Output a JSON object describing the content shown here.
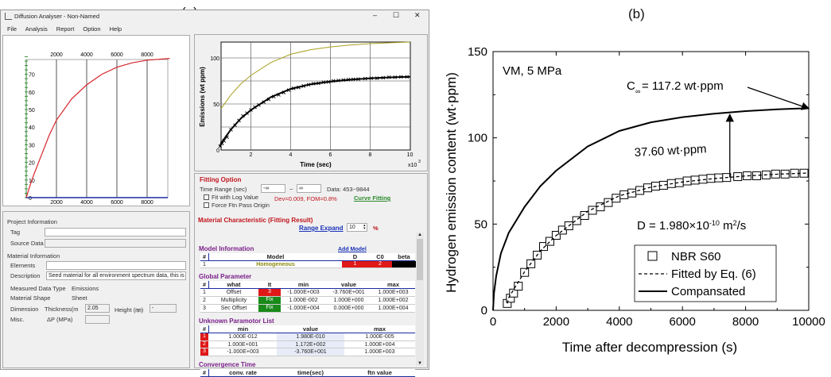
{
  "panel_labels": {
    "a": "(a)",
    "b": "(b)"
  },
  "app": {
    "title": "Diffusion Analyser -  Non-Named",
    "window_controls": {
      "minimize": "–",
      "maximize": "☐",
      "close": "✕"
    },
    "menu": [
      "File",
      "Analysis",
      "Report",
      "Option",
      "Help"
    ],
    "preview_chart": {
      "x_ticks": [
        "2000",
        "4000",
        "6000",
        "8000"
      ],
      "y_ticks": [
        "0",
        "10",
        "20",
        "30",
        "40",
        "50",
        "60",
        "70"
      ],
      "curve": [
        [
          0,
          0
        ],
        [
          250,
          7
        ],
        [
          500,
          13
        ],
        [
          1000,
          24
        ],
        [
          1500,
          35
        ],
        [
          2000,
          44
        ],
        [
          3000,
          56
        ],
        [
          4000,
          64
        ],
        [
          5000,
          70
        ],
        [
          6000,
          74
        ],
        [
          7000,
          76.5
        ],
        [
          8000,
          78
        ],
        [
          9500,
          79
        ]
      ],
      "curve_color": "#d8262c"
    },
    "emission_chart": {
      "ylabel": "Emissions (wt ppm)",
      "xlabel": "Time (sec)",
      "x_multiplier": "x10",
      "x_multiplier_exp": "3",
      "x_ticks": [
        "2",
        "4",
        "6",
        "8",
        "10"
      ],
      "y_ticks": [
        "0",
        "50",
        "100"
      ],
      "compensated_color": "#a8a020"
    },
    "project": {
      "section": "Project Information",
      "tag_label": "Tag",
      "tag_value": "",
      "source_label": "Source Data",
      "source_value": ""
    },
    "material": {
      "section": "Material Information",
      "elements_label": "Elements",
      "elements_value": "",
      "description_label": "Description",
      "description_value": "Seed material for all environment spectrum data, this is",
      "measured_label": "Measured Data Type",
      "measured_value": "Emissions",
      "shape_label": "Material Shape",
      "shape_value": "Sheet",
      "dimension_label": "Dimension",
      "thickness_label": "Thickness(m",
      "thickness_value": "2.05",
      "height_label": "Height (㎜)",
      "height_value": "-",
      "misc_label": "Misc.",
      "dp_label": "ΔP (MPa)",
      "dp_value": ""
    },
    "fitting": {
      "section": "Fitting Option",
      "time_range_label": "Time Range (sec)",
      "from": "-∞",
      "tilde": "~",
      "to": "∞",
      "data_range": "Data: 453~9844",
      "log_label": "Fit with Log Value",
      "log_checked": false,
      "stats": "Dev=0.009,  FOM=0.8%",
      "curve_fitting": "Curve Fitting",
      "origin_label": "Force Ftn Pass Origin",
      "origin_checked": false
    },
    "result": {
      "section": "Material Characteristic (Fitting Result)",
      "range_expand": "Range Expand",
      "range_value": "10",
      "percent": "%",
      "model_info": {
        "title": "Model Information",
        "add_model": "Add Model",
        "headers": [
          "#",
          "Model",
          "D",
          "C0",
          "beta"
        ],
        "rows": [
          [
            "1",
            "Homogeneous",
            "1",
            "2",
            ""
          ]
        ]
      },
      "global": {
        "title": "Global Parameter",
        "headers": [
          "#",
          "what",
          "It",
          "min",
          "value",
          "max"
        ],
        "rows": [
          [
            "1",
            "Offset",
            "3",
            "-1.000E+003",
            "-3.760E+001",
            "1.000E+003"
          ],
          [
            "2",
            "Multiplicity",
            "Fix",
            "1.000E-002",
            "1.000E+000",
            "1.000E+002"
          ],
          [
            "3",
            "Sec Offset",
            "Fix",
            "-1.000E+004",
            "0.000E+000",
            "1.000E+004"
          ]
        ]
      },
      "unknown": {
        "title": "Unknown Paramotor List",
        "headers": [
          "#",
          "min",
          "value",
          "max"
        ],
        "rows": [
          [
            "1",
            "1.000E-012",
            "1.980E-010",
            "1.000E-005"
          ],
          [
            "2",
            "1.000E+001",
            "1.172E+002",
            "1.000E+004"
          ],
          [
            "3",
            "-1.000E+003",
            "-3.760E+001",
            "1.000E+003"
          ]
        ]
      },
      "convergence": {
        "title": "Convergence Time",
        "headers": [
          "#",
          "conv. rate",
          "time(sec)",
          "ftn value"
        ]
      }
    }
  },
  "chart_data": {
    "type": "scatter",
    "xlabel": "Time after decompression (s)",
    "ylabel": "Hydrogen emission content (wt·ppm)",
    "xlim": [
      0,
      10000
    ],
    "ylim": [
      0,
      150
    ],
    "x_ticks": [
      "0",
      "2000",
      "4000",
      "6000",
      "8000",
      "10000"
    ],
    "y_ticks": [
      "0",
      "50",
      "100",
      "150"
    ],
    "grid": false,
    "legend_position": "bottom-right",
    "annotations": {
      "condition": "VM, 5 MPa",
      "c_inf_prefix": "C",
      "c_inf_sub": "∞",
      "c_inf_text": "= 117.2 wt·ppm",
      "gap": "37.60 wt·ppm",
      "d_prefix": "D = 1.980×10",
      "d_exp": "-10",
      "d_unit": " m",
      "d_unit_exp": "2",
      "d_suffix": "/s"
    },
    "offset": 37.6,
    "series": [
      {
        "name": "NBR S60",
        "style": "open-square",
        "x": [
          450,
          550,
          650,
          800,
          1000,
          1200,
          1400,
          1600,
          1800,
          2000,
          2200,
          2400,
          2650,
          2900,
          3150,
          3400,
          3650,
          3900,
          4150,
          4400,
          4650,
          4900,
          5150,
          5400,
          5650,
          5900,
          6150,
          6400,
          6650,
          6900,
          7150,
          7400,
          7750,
          8050,
          8350,
          8650,
          8950,
          9250,
          9550,
          9850
        ],
        "y": [
          4,
          7,
          10,
          14,
          22,
          27,
          32,
          37,
          40,
          43.5,
          46.5,
          49,
          52,
          55,
          58,
          60,
          62.5,
          65,
          67,
          68,
          69.5,
          71,
          72,
          72.5,
          73.5,
          74,
          75,
          75.5,
          76,
          76.5,
          76.8,
          77,
          77.5,
          78,
          78,
          78.5,
          79,
          79,
          79.5,
          79.5
        ]
      },
      {
        "name": "Fitted by Eq. (6)",
        "style": "dashed",
        "x": [
          450,
          500,
          1000,
          1500,
          2000,
          3000,
          4000,
          5000,
          6000,
          7000,
          8000,
          9000,
          10000
        ],
        "y": [
          4,
          7.4,
          22.4,
          34.4,
          43.4,
          57.4,
          66.4,
          71.4,
          74.4,
          76.4,
          77.9,
          78.9,
          79.6
        ]
      },
      {
        "name": "Compansated",
        "style": "solid",
        "x": [
          0,
          30,
          100,
          250,
          500,
          1000,
          1500,
          2000,
          3000,
          4000,
          5000,
          6000,
          7000,
          8000,
          9000,
          10000
        ],
        "y": [
          0,
          10,
          20,
          33,
          45,
          60,
          72,
          81,
          95,
          104,
          109,
          112,
          114,
          115.5,
          116.5,
          117.2
        ]
      }
    ]
  }
}
